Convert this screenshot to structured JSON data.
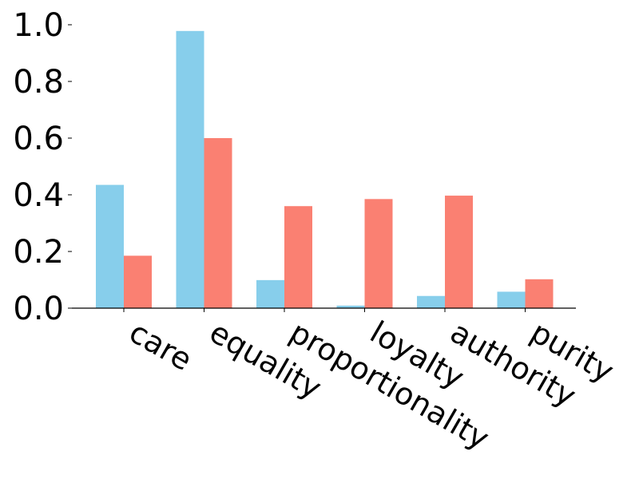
{
  "chart_data": {
    "type": "bar",
    "categories": [
      "care",
      "equality",
      "proportionality",
      "loyalty",
      "authority",
      "purity"
    ],
    "series": [
      {
        "color": "#87CEEB",
        "values": [
          0.435,
          0.978,
          0.099,
          0.009,
          0.043,
          0.058
        ]
      },
      {
        "color": "#FA8072",
        "values": [
          0.185,
          0.6,
          0.36,
          0.385,
          0.397,
          0.102
        ]
      }
    ],
    "ylim": [
      0,
      1.0
    ],
    "yticks": [
      "0.0",
      "0.2",
      "0.4",
      "0.6",
      "0.8",
      "1.0"
    ],
    "xtick_rotation_deg": -30,
    "grid": false,
    "legend": "none",
    "spines": "left and bottom only, left spine hidden"
  }
}
